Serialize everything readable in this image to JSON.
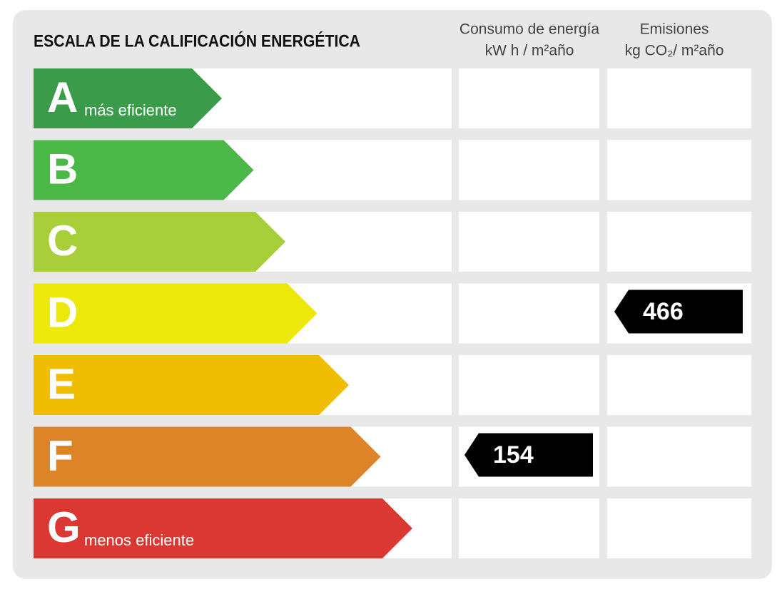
{
  "title": "ESCALA DE LA CALIFICACIÓN ENERGÉTICA",
  "columns": [
    {
      "title": "Consumo de energía",
      "unit": "kW h / m²año"
    },
    {
      "title": "Emisiones",
      "unit": "kg CO₂/ m²año"
    }
  ],
  "rows": [
    {
      "letter": "A",
      "note": "más eficiente",
      "color": "#3a9c4a",
      "consumption": null,
      "emissions": null
    },
    {
      "letter": "B",
      "color": "#4cb848",
      "consumption": null,
      "emissions": null
    },
    {
      "letter": "C",
      "color": "#a8cf3a",
      "consumption": null,
      "emissions": null
    },
    {
      "letter": "D",
      "color": "#ece80a",
      "consumption": null,
      "emissions": 466
    },
    {
      "letter": "E",
      "color": "#efbe02",
      "consumption": null,
      "emissions": null
    },
    {
      "letter": "F",
      "color": "#dd8328",
      "consumption": 154,
      "emissions": null
    },
    {
      "letter": "G",
      "note": "menos eficiente",
      "color": "#db3733",
      "consumption": null,
      "emissions": null
    }
  ]
}
